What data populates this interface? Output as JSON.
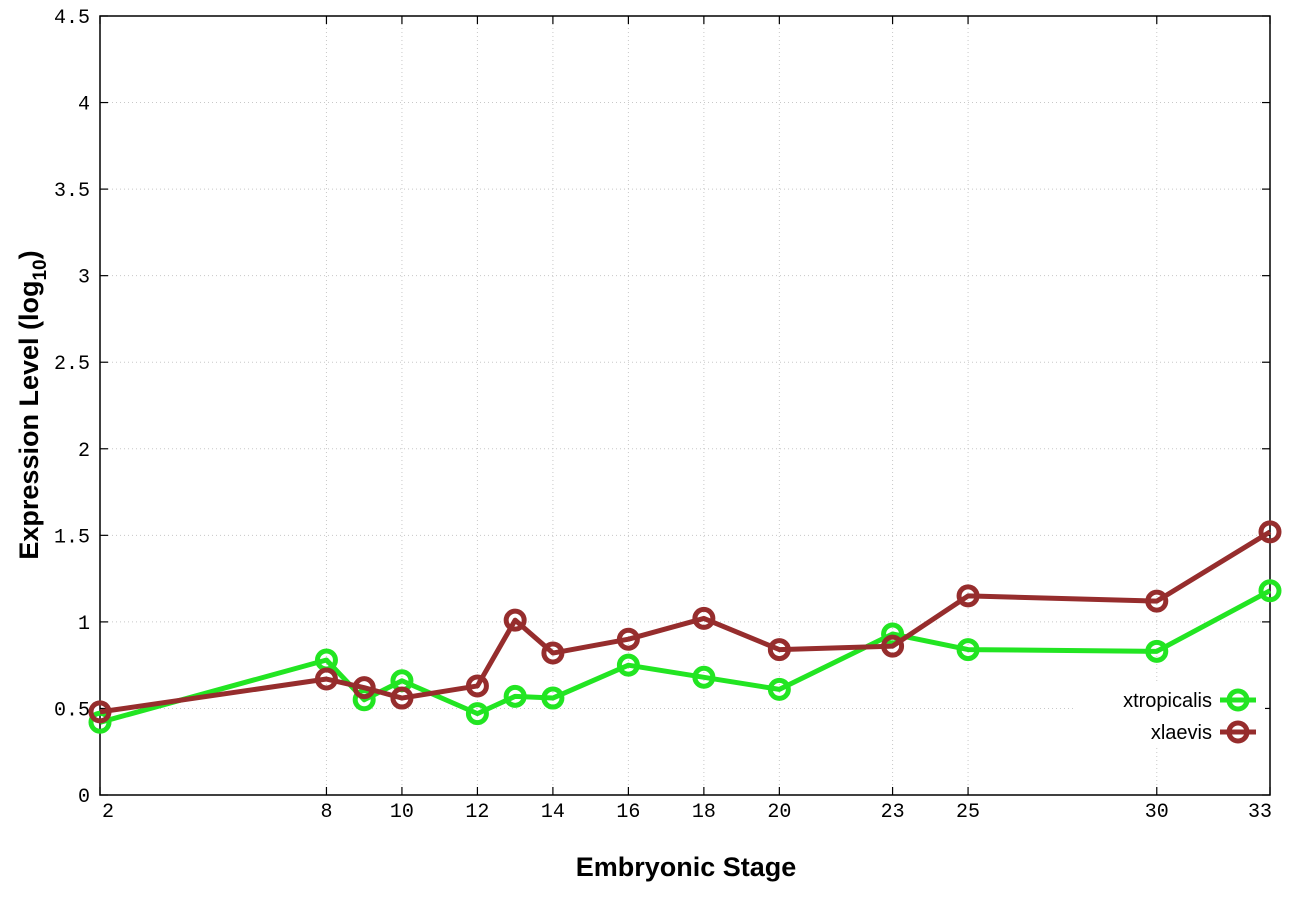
{
  "chart_data": {
    "type": "line",
    "xlabel": "Embryonic Stage",
    "ylabel_main": "Expression Level (log",
    "ylabel_sub": "10",
    "ylabel_close": ")",
    "ylim": [
      0,
      4.5
    ],
    "yticks": [
      {
        "value": 0,
        "label": "0"
      },
      {
        "value": 0.5,
        "label": "0.5"
      },
      {
        "value": 1,
        "label": "1"
      },
      {
        "value": 1.5,
        "label": "1.5"
      },
      {
        "value": 2,
        "label": "2"
      },
      {
        "value": 2.5,
        "label": "2.5"
      },
      {
        "value": 3,
        "label": "3"
      },
      {
        "value": 3.5,
        "label": "3.5"
      },
      {
        "value": 4,
        "label": "4"
      },
      {
        "value": 4.5,
        "label": "4.5"
      }
    ],
    "xticks": [
      "2",
      "8",
      "10",
      "12",
      "14",
      "16",
      "18",
      "20",
      "23",
      "25",
      "30",
      "33"
    ],
    "x": [
      "2",
      "8",
      "9",
      "10",
      "12",
      "13",
      "14",
      "16",
      "18",
      "20",
      "23",
      "25",
      "30",
      "33"
    ],
    "grid": true,
    "legend_position": "bottom-right",
    "series": [
      {
        "name": "xtropicalis",
        "color": "#22e522",
        "values": [
          0.42,
          0.78,
          0.55,
          0.66,
          0.47,
          0.57,
          0.56,
          0.75,
          0.68,
          0.61,
          0.93,
          0.84,
          0.83,
          1.18
        ]
      },
      {
        "name": "xlaevis",
        "color": "#962d2d",
        "values": [
          0.48,
          0.67,
          0.62,
          0.56,
          0.63,
          1.01,
          0.82,
          0.9,
          1.02,
          0.84,
          0.86,
          1.15,
          1.12,
          1.52
        ]
      }
    ]
  }
}
